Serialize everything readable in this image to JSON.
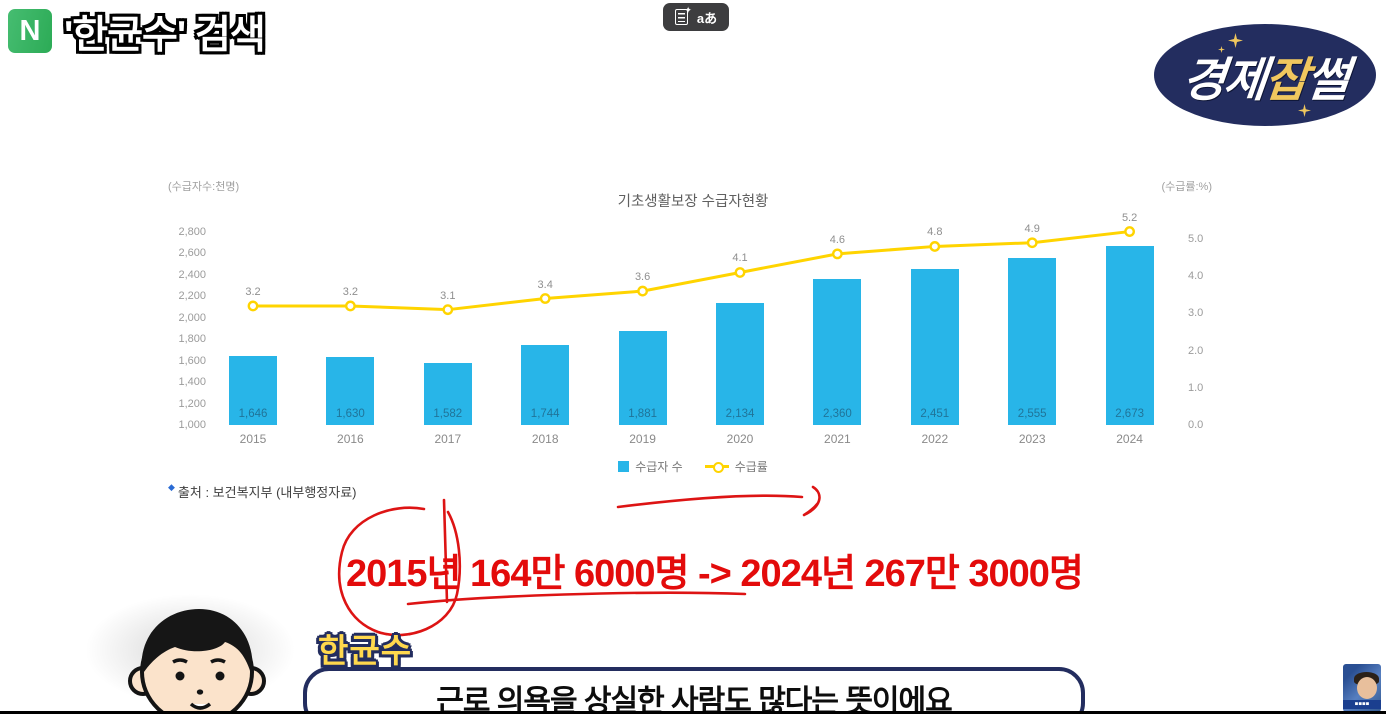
{
  "naver": {
    "logo_letter": "N",
    "caption": "'한균수' 검색"
  },
  "toolbar_tooltip": {
    "translate_label": "aあ",
    "sparkle": "✦"
  },
  "channel_badge": {
    "part1": "경제",
    "part2": "잡",
    "part3": "썰",
    "bg_color": "#232d5f",
    "gold_color": "#f0c75e"
  },
  "chart_data": {
    "type": "bar",
    "title": "기초생활보장 수급자현황",
    "left_axis_label": "(수급자수:천명)",
    "right_axis_label": "(수급률:%)",
    "categories": [
      "2015",
      "2016",
      "2017",
      "2018",
      "2019",
      "2020",
      "2021",
      "2022",
      "2023",
      "2024"
    ],
    "series": [
      {
        "name": "수급자 수",
        "type": "bar",
        "color": "#28b5e8",
        "values": [
          1646,
          1630,
          1582,
          1744,
          1881,
          2134,
          2360,
          2451,
          2555,
          2673
        ],
        "labels": [
          "1,646",
          "1,630",
          "1,582",
          "1,744",
          "1,881",
          "2,134",
          "2,360",
          "2,451",
          "2,555",
          "2,673"
        ]
      },
      {
        "name": "수급률",
        "type": "line",
        "color": "#ffd400",
        "values": [
          3.2,
          3.2,
          3.1,
          3.4,
          3.6,
          4.1,
          4.6,
          4.8,
          4.9,
          5.2
        ],
        "labels": [
          "3.2",
          "3.2",
          "3.1",
          "3.4",
          "3.6",
          "4.1",
          "4.6",
          "4.8",
          "4.9",
          "5.2"
        ]
      }
    ],
    "left_ticks": [
      "2,800",
      "2,600",
      "2,400",
      "2,200",
      "2,000",
      "1,800",
      "1,600",
      "1,400",
      "1,200",
      "1,000"
    ],
    "right_ticks": [
      "5.0",
      "4.0",
      "3.0",
      "2.0",
      "1.0",
      "0.0"
    ],
    "left_range": [
      1000,
      2800
    ],
    "right_range": [
      0,
      5.0
    ],
    "legend": [
      "수급자 수",
      "수급률"
    ],
    "legend_position": "bottom-center",
    "grid": false,
    "source": "출처 : 보건복지부 (내부행정자료)"
  },
  "highlight": {
    "headline": "2015년 164만 6000명 -> 2024년 267만 3000명"
  },
  "speaker": {
    "name_tag": "한균수",
    "speech": "근로 의욕을 상실한 사람도 많다는 뜻이에요"
  }
}
